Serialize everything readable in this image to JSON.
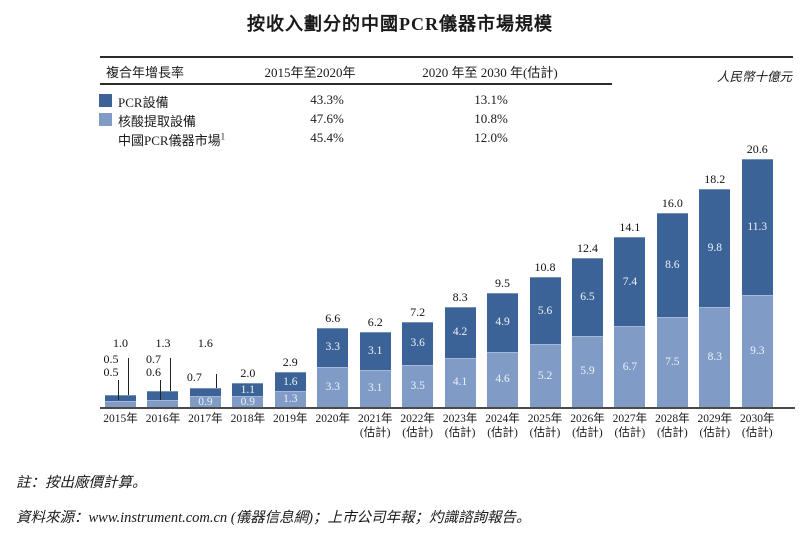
{
  "title": "按收入劃分的中國PCR儀器市場規模",
  "unit_label": "人民幣十億元",
  "cagr_table": {
    "header": [
      "複合年增長率",
      "2015年至2020年",
      "2020 年至 2030 年(估計)"
    ],
    "rows": [
      {
        "label": "PCR設備",
        "sup": "",
        "swatch": "dark",
        "cagr_2015_2020": "43.3%",
        "cagr_2020_2030": "13.1%"
      },
      {
        "label": "核酸提取設備",
        "sup": "",
        "swatch": "light",
        "cagr_2015_2020": "47.6%",
        "cagr_2020_2030": "10.8%"
      },
      {
        "label": "中國PCR儀器市場",
        "sup": "1",
        "swatch": "none",
        "cagr_2015_2020": "45.4%",
        "cagr_2020_2030": "12.0%"
      }
    ]
  },
  "chart_data": {
    "type": "bar",
    "stacked": true,
    "title": "按收入劃分的中國PCR儀器市場規模",
    "ylabel": "人民幣十億元",
    "categories": [
      "2015年",
      "2016年",
      "2017年",
      "2018年",
      "2019年",
      "2020年",
      "2021年",
      "2022年",
      "2023年",
      "2024年",
      "2025年",
      "2026年",
      "2027年",
      "2028年",
      "2029年",
      "2030年"
    ],
    "estimate_label": "(估計)",
    "estimated_from_index": 6,
    "series": [
      {
        "name": "PCR設備",
        "color": "#3b6397",
        "values": [
          0.5,
          0.7,
          0.7,
          1.1,
          1.6,
          3.3,
          3.1,
          3.6,
          4.2,
          4.9,
          5.6,
          6.5,
          7.4,
          8.6,
          9.8,
          11.3
        ]
      },
      {
        "name": "核酸提取設備",
        "color": "#7f9bc6",
        "values": [
          0.5,
          0.6,
          0.9,
          0.9,
          1.3,
          3.3,
          3.1,
          3.5,
          4.1,
          4.6,
          5.2,
          5.9,
          6.7,
          7.5,
          8.3,
          9.3
        ]
      }
    ],
    "totals": [
      1.0,
      1.3,
      1.6,
      2.0,
      2.9,
      6.6,
      6.2,
      7.2,
      8.3,
      9.5,
      10.8,
      12.4,
      14.1,
      16.0,
      18.2,
      20.6
    ],
    "ylim": [
      0,
      21
    ],
    "grid": false,
    "legend_position": "top-left-table"
  },
  "notes": {
    "note": "註：按出廠價計算。",
    "source": "資料來源：www.instrument.com.cn (儀器信息網)；上市公司年報；灼識諮詢報告。"
  }
}
